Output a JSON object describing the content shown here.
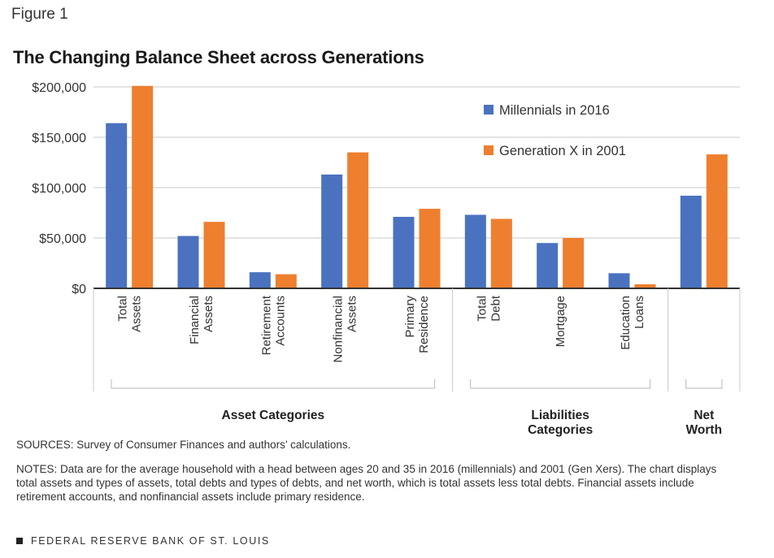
{
  "figure_label": "Figure 1",
  "sources": "SOURCES: Survey of Consumer Finances and authors’ calculations.",
  "notes": "NOTES: Data are for the average household with a head between ages 20 and 35 in 2016 (millennials) and 2001 (Gen Xers). The chart displays total assets and types of assets, total debts and types of debts, and net worth, which is total assets less total debts. Financial assets include retirement accounts, and nonfinancial assets include primary residence.",
  "footer": "FEDERAL RESERVE BANK OF ST. LOUIS",
  "chart_data": {
    "type": "bar",
    "title": "The Changing Balance Sheet across Generations",
    "categories": [
      [
        "Total",
        "Assets"
      ],
      [
        "Financial",
        "Assets"
      ],
      [
        "Retirement",
        "Accounts"
      ],
      [
        "Nonfinancial",
        "Assets"
      ],
      [
        "Primary",
        "Residence"
      ],
      [
        "Total",
        "Debt"
      ],
      [
        "Mortgage"
      ],
      [
        "Education",
        "Loans"
      ],
      []
    ],
    "series": [
      {
        "name": "Millennials in 2016",
        "color": "#4a72bf",
        "values": [
          164000,
          52000,
          16000,
          113000,
          71000,
          73000,
          45000,
          15000,
          92000
        ]
      },
      {
        "name": "Generation X in 2001",
        "color": "#ee7f2f",
        "values": [
          201000,
          66000,
          14000,
          135000,
          79000,
          69000,
          50000,
          4000,
          133000
        ]
      }
    ],
    "ylim": [
      0,
      200000
    ],
    "yticks": [
      "$0",
      "$50,000",
      "$100,000",
      "$150,000",
      "$200,000"
    ],
    "ytick_values": [
      0,
      50000,
      100000,
      150000,
      200000
    ],
    "groups": [
      {
        "label": [
          "Asset Categories"
        ],
        "start": 0,
        "end": 4
      },
      {
        "label": [
          "Liabilities",
          "Categories"
        ],
        "start": 5,
        "end": 7
      },
      {
        "label": [
          "Net",
          "Worth"
        ],
        "start": 8,
        "end": 8
      }
    ],
    "grid": true,
    "legend_position": "top-right"
  }
}
